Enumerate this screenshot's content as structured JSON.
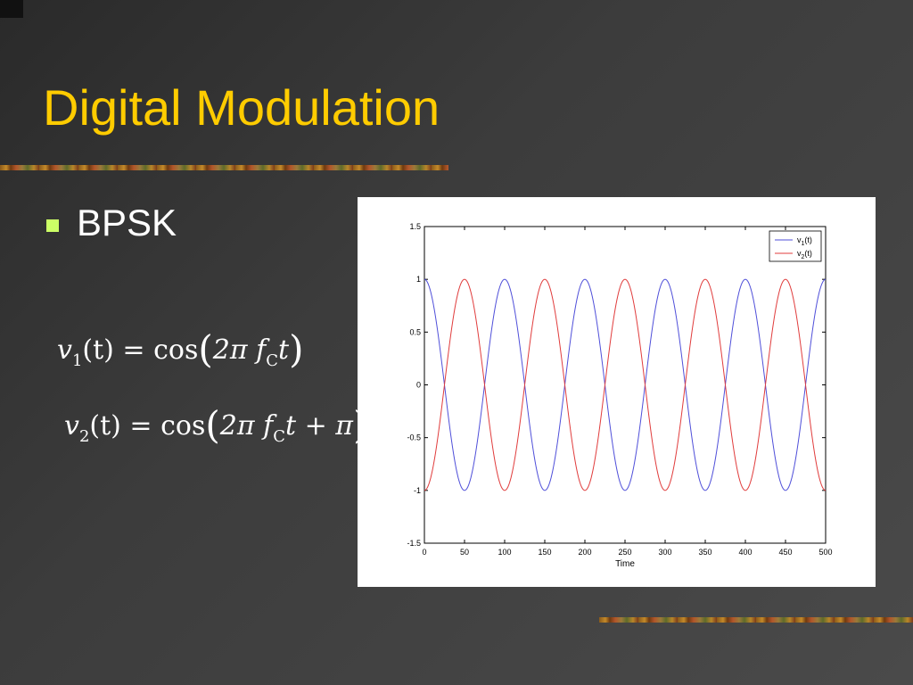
{
  "slide": {
    "title": "Digital Modulation",
    "bullet": "BPSK"
  },
  "equations": {
    "eq1": {
      "lhs_var": "v",
      "lhs_sub": "1",
      "lhs_arg": "(t)",
      "eq": "=",
      "func": "cos",
      "inner": "2π f",
      "inner_sub": "C",
      "tail": "t"
    },
    "eq2": {
      "lhs_var": "v",
      "lhs_sub": "2",
      "lhs_arg": "(t)",
      "eq": "=",
      "func": "cos",
      "inner": "2π f",
      "inner_sub": "C",
      "tail": "t + π"
    }
  },
  "colors": {
    "title": "#ffcc00",
    "bullet_marker": "#ccff66",
    "series_v1": "#4f4fd9",
    "series_v2": "#e03c3c"
  },
  "chart_data": {
    "type": "line",
    "xlabel": "Time",
    "ylabel": "",
    "title": "",
    "xlim": [
      0,
      500
    ],
    "ylim": [
      -1.5,
      1.5
    ],
    "x_ticks": [
      0,
      50,
      100,
      150,
      200,
      250,
      300,
      350,
      400,
      450,
      500
    ],
    "y_ticks": [
      1.5,
      1,
      0.5,
      0,
      -0.5,
      -1,
      -1.5
    ],
    "y_tick_labels": [
      "1.5",
      "1",
      "0.5",
      "0",
      "-0.5",
      "-1",
      "-1.5"
    ],
    "grid": false,
    "legend_position": "top-right",
    "period": 100,
    "series": [
      {
        "name": "v1(t)",
        "label_base": "v",
        "label_sub": "1",
        "label_tail": "(t)",
        "color": "#4f4fd9",
        "formula": "cos(2*pi*x/100)",
        "phase": 0
      },
      {
        "name": "v2(t)",
        "label_base": "v",
        "label_sub": "2",
        "label_tail": "(t)",
        "color": "#e03c3c",
        "formula": "cos(2*pi*x/100 + pi)",
        "phase": 3.14159265
      }
    ]
  }
}
